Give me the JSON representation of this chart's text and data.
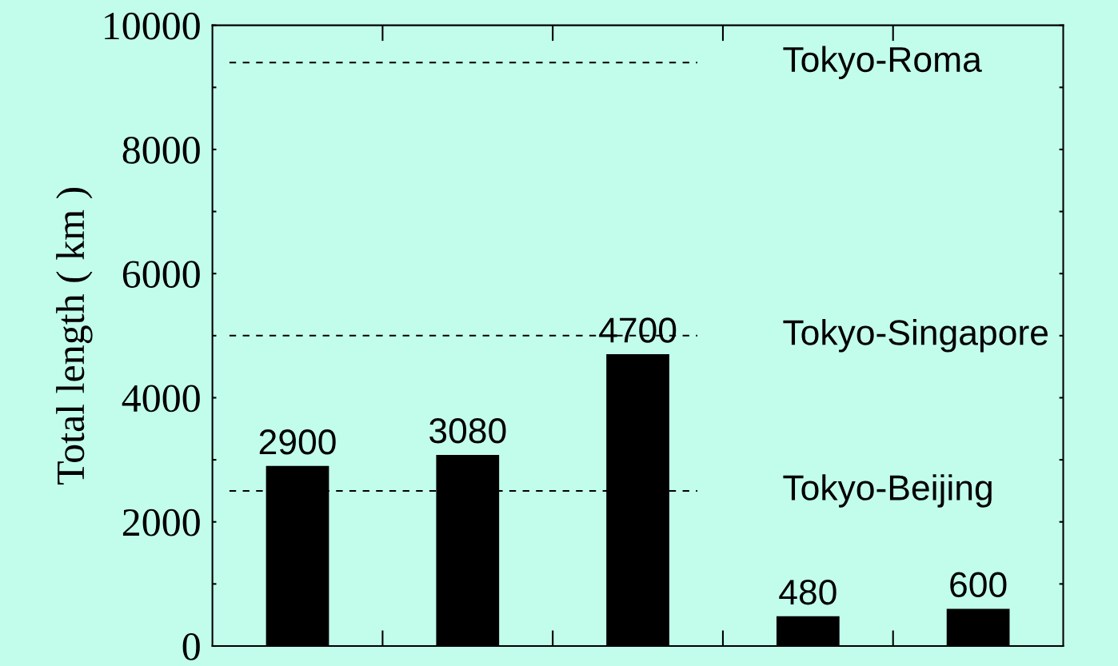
{
  "chart_data": {
    "type": "bar",
    "ylabel": "Total length ( km )",
    "categories": [
      null,
      null,
      null,
      null,
      null
    ],
    "values": [
      2900,
      3080,
      4700,
      480,
      600
    ],
    "color": "#000000",
    "data_labels": true,
    "ylim": [
      0,
      10000
    ],
    "yticks": [
      0,
      {
        "value": 1000,
        "label": null
      },
      2000,
      {
        "value": 3000,
        "label": null
      },
      4000,
      {
        "value": 5000,
        "label": null
      },
      6000,
      {
        "value": 7000,
        "label": null
      },
      8000,
      {
        "value": 9000,
        "label": null
      },
      10000
    ],
    "ref_lines": [
      {
        "axis": "y",
        "value": 9400,
        "label": "Tokyo-Roma",
        "color": "#000000",
        "line_style": "dashed"
      },
      {
        "axis": "y",
        "value": 5000,
        "label": "Tokyo-Singapore",
        "color": "#000000",
        "line_style": "dashed"
      },
      {
        "axis": "y",
        "value": 2500,
        "label": "Tokyo-Beijing",
        "color": "#000000",
        "line_style": "dashed"
      }
    ],
    "grid": false,
    "legend": false
  }
}
